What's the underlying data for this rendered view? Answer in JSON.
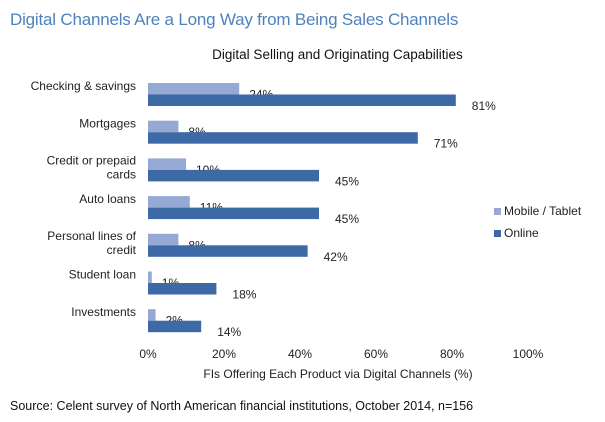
{
  "page_title": "Digital Channels Are a Long Way from Being Sales Channels",
  "source": "Source: Celent survey of North American financial institutions, October 2014, n=156",
  "colors": {
    "mobile": "#95a9d4",
    "online": "#3d69a6"
  },
  "chart_data": {
    "type": "bar",
    "orientation": "horizontal",
    "title": "Digital Selling and Originating Capabilities",
    "xlabel": "FIs Offering Each Product via Digital Channels (%)",
    "ylabel": "",
    "xlim": [
      0,
      100
    ],
    "xticks": [
      "0%",
      "20%",
      "40%",
      "60%",
      "80%",
      "100%"
    ],
    "grid": false,
    "legend_position": "right",
    "categories": [
      [
        "Checking & savings"
      ],
      [
        "Mortgages"
      ],
      [
        "Credit or prepaid",
        "cards"
      ],
      [
        "Auto loans"
      ],
      [
        "Personal lines of",
        "credit"
      ],
      [
        "Student loan"
      ],
      [
        "Investments"
      ]
    ],
    "series": [
      {
        "name": "Mobile / Tablet",
        "values": [
          24,
          8,
          10,
          11,
          8,
          1,
          2
        ],
        "labels": [
          "24%",
          "8%",
          "10%",
          "11%",
          "8%",
          "1%",
          "2%"
        ]
      },
      {
        "name": "Online",
        "values": [
          81,
          71,
          45,
          45,
          42,
          18,
          14
        ],
        "labels": [
          "81%",
          "71%",
          "45%",
          "45%",
          "42%",
          "18%",
          "14%"
        ]
      }
    ]
  }
}
